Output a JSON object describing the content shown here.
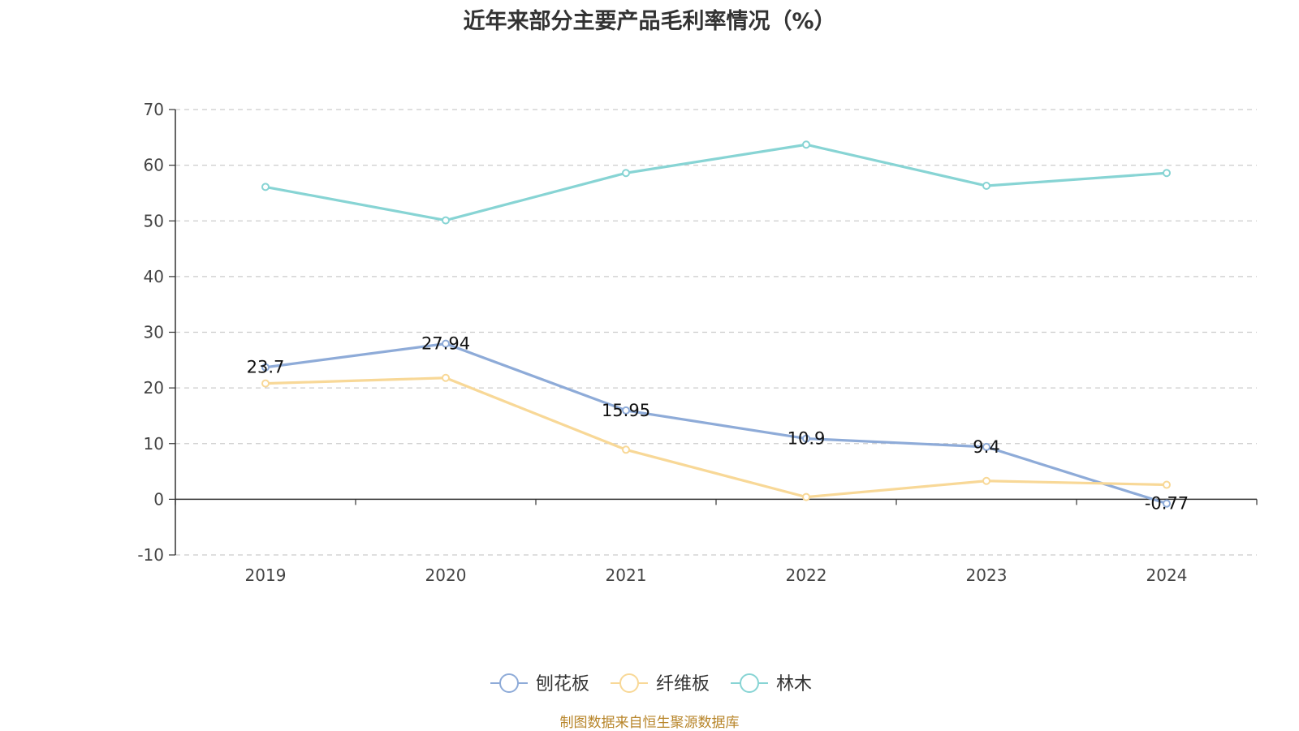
{
  "title": "近年来部分主要产品毛利率情况（%）",
  "source": "制图数据来自恒生聚源数据库",
  "chart_data": {
    "type": "line",
    "title": "近年来部分主要产品毛利率情况（%）",
    "categories": [
      "2019",
      "2020",
      "2021",
      "2022",
      "2023",
      "2024"
    ],
    "ylim": [
      -10,
      70
    ],
    "yticks": [
      -10,
      0,
      10,
      20,
      30,
      40,
      50,
      60,
      70
    ],
    "grid": true,
    "legend_position": "bottom",
    "series": [
      {
        "name": "刨花板",
        "color": "#8eabd8",
        "values": [
          23.7,
          27.94,
          15.95,
          10.9,
          9.4,
          -0.77
        ],
        "labels": [
          "23.7",
          "27.94",
          "15.95",
          "10.9",
          "9.4",
          "-0.77"
        ]
      },
      {
        "name": "纤维板",
        "color": "#f8d897",
        "values": [
          20.8,
          21.8,
          8.9,
          0.4,
          3.3,
          2.6
        ]
      },
      {
        "name": "林木",
        "color": "#87d4d4",
        "values": [
          56.1,
          50.1,
          58.6,
          63.7,
          56.3,
          58.6
        ]
      }
    ]
  }
}
